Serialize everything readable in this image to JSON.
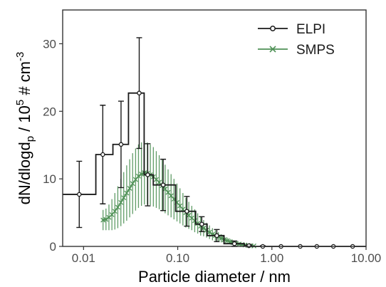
{
  "chart_data": {
    "type": "line",
    "xlabel": "Particle diameter / nm",
    "ylabel_parts": {
      "main": "dN/dlogd",
      "sub": "p",
      "mid": "  / 10",
      "sup": "5",
      "unit": " # cm",
      "unit_sup": "-3"
    },
    "x_scale": "log",
    "xlim": [
      0.006,
      10
    ],
    "ylim": [
      0,
      35
    ],
    "x_ticks": [
      {
        "value": 0.01,
        "label": "0.01"
      },
      {
        "value": 0.1,
        "label": "0.10"
      },
      {
        "value": 1,
        "label": "1.00"
      },
      {
        "value": 10,
        "label": "10.00"
      }
    ],
    "y_ticks": [
      {
        "value": 0,
        "label": "0"
      },
      {
        "value": 10,
        "label": "10"
      },
      {
        "value": 20,
        "label": "20"
      },
      {
        "value": 30,
        "label": "30"
      }
    ],
    "grid": false,
    "legend_position": "top-right",
    "series": [
      {
        "name": "ELPI",
        "color": "#1a1a1a",
        "marker": "circle",
        "style": "step",
        "bin_edges": [
          0.006,
          0.0135,
          0.0205,
          0.03,
          0.044,
          0.055,
          0.095,
          0.155,
          0.205,
          0.31,
          0.51,
          0.61,
          1.0,
          1.6,
          2.6,
          3.6,
          5.4,
          10.0
        ],
        "x": [
          0.009,
          0.016,
          0.025,
          0.039,
          0.048,
          0.07,
          0.125,
          0.18,
          0.26,
          0.4,
          0.57,
          0.8,
          1.25,
          2.0,
          3.0,
          4.5,
          7.2
        ],
        "y": [
          7.7,
          13.6,
          15.1,
          22.7,
          10.6,
          9.1,
          5.2,
          3.3,
          1.6,
          0.4,
          0.1,
          0.0,
          0.0,
          0.0,
          0.0,
          0.0,
          0.0
        ],
        "err": [
          4.9,
          7.3,
          6.4,
          8.2,
          4.6,
          3.8,
          2.2,
          1.1,
          0.9,
          0.4,
          0.2,
          0.1,
          0.0,
          0.0,
          0.0,
          0.0,
          0.0
        ]
      },
      {
        "name": "SMPS",
        "color": "#4f9156",
        "marker": "x",
        "style": "line",
        "x": [
          0.0161,
          0.0173,
          0.0186,
          0.02,
          0.0215,
          0.0231,
          0.0249,
          0.0267,
          0.0287,
          0.0309,
          0.0332,
          0.0357,
          0.0383,
          0.0412,
          0.0443,
          0.0476,
          0.0512,
          0.0551,
          0.0592,
          0.0636,
          0.0684,
          0.0735,
          0.079,
          0.085,
          0.0913,
          0.0982,
          0.1056,
          0.1135,
          0.122,
          0.1311,
          0.141,
          0.1516,
          0.1629,
          0.1751,
          0.1883,
          0.2024,
          0.2176,
          0.2339,
          0.2514,
          0.2703,
          0.2906,
          0.3124,
          0.3358,
          0.361,
          0.3881,
          0.4172,
          0.4485,
          0.4822,
          0.5183,
          0.5572,
          0.599,
          0.6439
        ],
        "y": [
          3.9,
          4.0,
          4.3,
          4.7,
          5.2,
          5.8,
          6.5,
          7.2,
          7.9,
          8.6,
          9.3,
          9.9,
          10.4,
          10.7,
          10.9,
          10.8,
          10.6,
          10.3,
          9.9,
          9.5,
          9.0,
          8.5,
          8.0,
          7.5,
          7.0,
          6.5,
          6.0,
          5.5,
          5.0,
          4.6,
          4.2,
          3.8,
          3.4,
          3.0,
          2.7,
          2.4,
          2.1,
          1.8,
          1.6,
          1.4,
          1.2,
          1.0,
          0.85,
          0.7,
          0.55,
          0.45,
          0.35,
          0.27,
          0.2,
          0.15,
          0.1,
          0.07
        ],
        "err": [
          1.5,
          1.6,
          1.9,
          2.3,
          2.7,
          3.1,
          3.5,
          3.8,
          4.1,
          4.3,
          4.5,
          4.6,
          4.7,
          4.7,
          4.7,
          4.6,
          4.5,
          4.4,
          4.2,
          4.0,
          3.8,
          3.6,
          3.4,
          3.2,
          3.0,
          2.8,
          2.6,
          2.4,
          2.2,
          2.0,
          1.8,
          1.7,
          1.5,
          1.4,
          1.2,
          1.1,
          1.0,
          0.9,
          0.8,
          0.7,
          0.6,
          0.5,
          0.45,
          0.4,
          0.35,
          0.3,
          0.25,
          0.2,
          0.15,
          0.12,
          0.1,
          0.08
        ]
      }
    ]
  }
}
